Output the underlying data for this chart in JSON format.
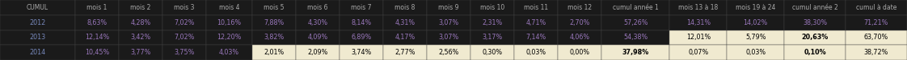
{
  "headers": [
    "CUMUL",
    "mois 1",
    "mois 2",
    "mois 3",
    "mois 4",
    "mois 5",
    "mois 6",
    "mois 7",
    "mois 8",
    "mois 9",
    "mois 10",
    "mois 11",
    "mois 12",
    "cumul année 1",
    "mois 13 à 18",
    "mois 19 à 24",
    "cumul année 2",
    "cumul à date"
  ],
  "rows": [
    {
      "label": "2012",
      "values": [
        "8,63%",
        "4,28%",
        "7,02%",
        "10,16%",
        "7,88%",
        "4,30%",
        "8,14%",
        "4,31%",
        "3,07%",
        "2,31%",
        "4,71%",
        "2,70%",
        "57,26%",
        "14,31%",
        "14,02%",
        "38,30%",
        "71,21%"
      ],
      "highlight": [
        false,
        false,
        false,
        false,
        false,
        false,
        false,
        false,
        false,
        false,
        false,
        false,
        false,
        false,
        false,
        false,
        false
      ],
      "bold": [
        false,
        false,
        false,
        false,
        false,
        false,
        false,
        false,
        false,
        false,
        false,
        false,
        false,
        false,
        false,
        false,
        false
      ]
    },
    {
      "label": "2013",
      "values": [
        "12,14%",
        "3,42%",
        "7,02%",
        "12,20%",
        "3,82%",
        "4,09%",
        "6,89%",
        "4,17%",
        "3,07%",
        "3,17%",
        "7,14%",
        "4,06%",
        "54,38%",
        "12,01%",
        "5,79%",
        "20,63%",
        "63,70%"
      ],
      "highlight": [
        false,
        false,
        false,
        false,
        false,
        false,
        false,
        false,
        false,
        false,
        false,
        false,
        false,
        true,
        true,
        true,
        true
      ],
      "bold": [
        false,
        false,
        false,
        false,
        false,
        false,
        false,
        false,
        false,
        false,
        false,
        false,
        false,
        false,
        false,
        true,
        false
      ]
    },
    {
      "label": "2014",
      "values": [
        "10,45%",
        "3,77%",
        "3,75%",
        "4,03%",
        "2,01%",
        "2,09%",
        "3,74%",
        "2,77%",
        "2,56%",
        "0,30%",
        "0,03%",
        "0,00%",
        "37,98%",
        "0,07%",
        "0,03%",
        "0,10%",
        "38,72%"
      ],
      "highlight": [
        false,
        false,
        false,
        false,
        true,
        true,
        true,
        true,
        true,
        true,
        true,
        true,
        true,
        true,
        true,
        true,
        true
      ],
      "bold": [
        false,
        false,
        false,
        false,
        false,
        false,
        false,
        false,
        false,
        false,
        false,
        false,
        true,
        false,
        false,
        true,
        false
      ]
    }
  ],
  "col_widths_raw": [
    5.5,
    3.2,
    3.2,
    3.2,
    3.4,
    3.2,
    3.2,
    3.2,
    3.2,
    3.2,
    3.2,
    3.2,
    3.2,
    5.0,
    4.2,
    4.2,
    4.5,
    4.5
  ],
  "bg_dark": "#1a1a1a",
  "header_text_color": "#aaaaaa",
  "row_label_color": "#7788bb",
  "row_value_color_normal": "#9977bb",
  "row_value_color_highlight": "#000000",
  "highlight_bg": "#f0ead0",
  "dark_bg": "#1a1a1a",
  "figsize": [
    11.22,
    0.75
  ],
  "dpi": 100,
  "font_size": 5.8,
  "header_font_size": 5.5
}
